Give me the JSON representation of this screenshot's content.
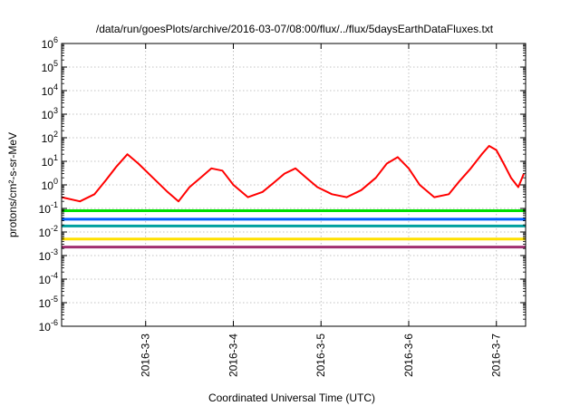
{
  "chart_data": {
    "type": "line",
    "title": "/data/run/goesPlots/archive/2016-03-07/08:00/flux/../flux/5daysEarthDataFluxes.txt",
    "xlabel": "Coordinated Universal Time (UTC)",
    "ylabel": "protons/cm²-s-sr-MeV",
    "y_scale": "log",
    "ylim": [
      1e-06,
      1000000.0
    ],
    "xlim": [
      "2016-03-02 01:00",
      "2016-03-07 08:00"
    ],
    "grid": true,
    "legend": "none",
    "x_ticks": [
      "2016-3-3",
      "2016-3-4",
      "2016-3-5",
      "2016-3-6",
      "2016-3-7"
    ],
    "y_ticks": [
      {
        "base": "10",
        "exp": "-6",
        "value": 1e-06
      },
      {
        "base": "10",
        "exp": "-5",
        "value": 1e-05
      },
      {
        "base": "10",
        "exp": "-4",
        "value": 0.0001
      },
      {
        "base": "10",
        "exp": "-3",
        "value": 0.001
      },
      {
        "base": "10",
        "exp": "-2",
        "value": 0.01
      },
      {
        "base": "10",
        "exp": "-1",
        "value": 0.1
      },
      {
        "base": "10",
        "exp": "0",
        "value": 1
      },
      {
        "base": "10",
        "exp": "1",
        "value": 10
      },
      {
        "base": "10",
        "exp": "2",
        "value": 100
      },
      {
        "base": "10",
        "exp": "3",
        "value": 1000
      },
      {
        "base": "10",
        "exp": "4",
        "value": 10000
      },
      {
        "base": "10",
        "exp": "5",
        "value": 100000
      },
      {
        "base": "10",
        "exp": "6",
        "value": 1000000
      }
    ],
    "series": [
      {
        "color": "#ff0000",
        "x": [
          "2016-03-02 01:00",
          "2016-03-02 06:00",
          "2016-03-02 10:00",
          "2016-03-02 13:00",
          "2016-03-02 16:00",
          "2016-03-02 19:00",
          "2016-03-02 22:00",
          "2016-03-03 02:00",
          "2016-03-03 06:00",
          "2016-03-03 09:00",
          "2016-03-03 12:00",
          "2016-03-03 15:00",
          "2016-03-03 18:00",
          "2016-03-03 21:00",
          "2016-03-04 00:00",
          "2016-03-04 04:00",
          "2016-03-04 08:00",
          "2016-03-04 11:00",
          "2016-03-04 14:00",
          "2016-03-04 17:00",
          "2016-03-04 20:00",
          "2016-03-04 23:00",
          "2016-03-05 03:00",
          "2016-03-05 07:00",
          "2016-03-05 11:00",
          "2016-03-05 15:00",
          "2016-03-05 18:00",
          "2016-03-05 21:00",
          "2016-03-06 00:00",
          "2016-03-06 03:00",
          "2016-03-06 07:00",
          "2016-03-06 11:00",
          "2016-03-06 14:00",
          "2016-03-06 17:00",
          "2016-03-06 20:00",
          "2016-03-06 22:00",
          "2016-03-07 00:00",
          "2016-03-07 02:00",
          "2016-03-07 04:00",
          "2016-03-07 06:00",
          "2016-03-07 07:30"
        ],
        "values": [
          0.3,
          0.2,
          0.4,
          1.5,
          6,
          20,
          8,
          2,
          0.5,
          0.2,
          0.8,
          2,
          5,
          4,
          1,
          0.3,
          0.5,
          1.2,
          3,
          5,
          2,
          0.8,
          0.4,
          0.3,
          0.6,
          2,
          8,
          15,
          5,
          1,
          0.3,
          0.4,
          1.5,
          5,
          20,
          45,
          30,
          8,
          2,
          0.8,
          3
        ]
      },
      {
        "color": "#00e000",
        "x": [
          "2016-03-02 01:00",
          "2016-03-03 00:00",
          "2016-03-04 00:00",
          "2016-03-05 00:00",
          "2016-03-06 00:00",
          "2016-03-07 00:00",
          "2016-03-07 08:00"
        ],
        "values": [
          0.08,
          0.08,
          0.08,
          0.08,
          0.08,
          0.08,
          0.08
        ]
      },
      {
        "color": "#0060ff",
        "x": [
          "2016-03-02 01:00",
          "2016-03-03 00:00",
          "2016-03-04 00:00",
          "2016-03-05 00:00",
          "2016-03-06 00:00",
          "2016-03-07 00:00",
          "2016-03-07 08:00"
        ],
        "values": [
          0.035,
          0.035,
          0.035,
          0.035,
          0.035,
          0.035,
          0.035
        ]
      },
      {
        "color": "#00a0a0",
        "x": [
          "2016-03-02 01:00",
          "2016-03-03 00:00",
          "2016-03-04 00:00",
          "2016-03-05 00:00",
          "2016-03-06 00:00",
          "2016-03-07 00:00",
          "2016-03-07 08:00"
        ],
        "values": [
          0.018,
          0.018,
          0.018,
          0.018,
          0.018,
          0.018,
          0.018
        ]
      },
      {
        "color": "#ffe000",
        "x": [
          "2016-03-02 01:00",
          "2016-03-03 00:00",
          "2016-03-04 00:00",
          "2016-03-05 00:00",
          "2016-03-06 00:00",
          "2016-03-07 00:00",
          "2016-03-07 08:00"
        ],
        "values": [
          0.005,
          0.005,
          0.005,
          0.005,
          0.005,
          0.005,
          0.005
        ]
      },
      {
        "color": "#a03070",
        "x": [
          "2016-03-02 01:00",
          "2016-03-03 00:00",
          "2016-03-04 00:00",
          "2016-03-05 00:00",
          "2016-03-06 00:00",
          "2016-03-07 00:00",
          "2016-03-07 08:00"
        ],
        "values": [
          0.0023,
          0.0023,
          0.0023,
          0.0023,
          0.0023,
          0.0023,
          0.0023
        ]
      }
    ]
  }
}
